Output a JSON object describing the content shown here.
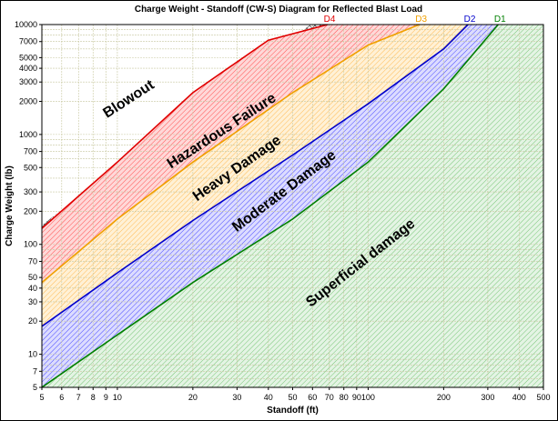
{
  "chart_data": {
    "type": "area",
    "title": "Charge Weight - Standoff (CW-S) Diagram for Reflected Blast Load",
    "xlabel": "Standoff (ft)",
    "ylabel": "Charge Weight (lb)",
    "x_scale": "log",
    "y_scale": "log",
    "xlim": [
      5,
      500
    ],
    "ylim": [
      5,
      10000
    ],
    "grid": true,
    "x_ticks": [
      {
        "v": 5,
        "label": "5"
      },
      {
        "v": 6,
        "label": "6"
      },
      {
        "v": 7,
        "label": "7"
      },
      {
        "v": 8,
        "label": "8"
      },
      {
        "v": 9,
        "label": "9"
      },
      {
        "v": 10,
        "label": "10"
      },
      {
        "v": 20,
        "label": "20"
      },
      {
        "v": 30,
        "label": "30"
      },
      {
        "v": 40,
        "label": "40"
      },
      {
        "v": 50,
        "label": "50"
      },
      {
        "v": 60,
        "label": "60"
      },
      {
        "v": 70,
        "label": "70"
      },
      {
        "v": 80,
        "label": "80"
      },
      {
        "v": 90,
        "label": "90"
      },
      {
        "v": 100,
        "label": "100"
      },
      {
        "v": 200,
        "label": "200"
      },
      {
        "v": 300,
        "label": "300"
      },
      {
        "v": 400,
        "label": "400"
      },
      {
        "v": 500,
        "label": "500"
      }
    ],
    "y_ticks": [
      {
        "v": 5,
        "label": "5"
      },
      {
        "v": 7,
        "label": "7"
      },
      {
        "v": 10,
        "label": "10"
      },
      {
        "v": 20,
        "label": "20"
      },
      {
        "v": 30,
        "label": "30"
      },
      {
        "v": 40,
        "label": "40"
      },
      {
        "v": 50,
        "label": "50"
      },
      {
        "v": 70,
        "label": "70"
      },
      {
        "v": 100,
        "label": "100"
      },
      {
        "v": 200,
        "label": "200"
      },
      {
        "v": 300,
        "label": "300"
      },
      {
        "v": 500,
        "label": "500"
      },
      {
        "v": 700,
        "label": "700"
      },
      {
        "v": 1000,
        "label": "1000"
      },
      {
        "v": 2000,
        "label": "2000"
      },
      {
        "v": 3000,
        "label": "3000"
      },
      {
        "v": 4000,
        "label": "4000"
      },
      {
        "v": 5000,
        "label": "5000"
      },
      {
        "v": 7000,
        "label": "7000"
      },
      {
        "v": 10000,
        "label": "10000"
      }
    ],
    "series": [
      {
        "name": "D4",
        "color": "#e00000",
        "x": [
          5,
          10,
          20,
          40,
          69
        ],
        "y": [
          140,
          560,
          2400,
          7200,
          10000
        ]
      },
      {
        "name": "D3",
        "color": "#f0a000",
        "x": [
          5,
          10,
          20,
          50,
          100,
          160
        ],
        "y": [
          45,
          170,
          560,
          2400,
          6500,
          10000
        ]
      },
      {
        "name": "D2",
        "color": "#0000cc",
        "x": [
          5,
          10,
          20,
          50,
          100,
          200,
          250
        ],
        "y": [
          18,
          55,
          165,
          650,
          1900,
          6000,
          10000
        ]
      },
      {
        "name": "D1",
        "color": "#008000",
        "x": [
          5,
          10,
          20,
          50,
          100,
          200,
          330
        ],
        "y": [
          5,
          15,
          45,
          170,
          560,
          2600,
          10000
        ]
      }
    ],
    "regions": [
      {
        "label": "Blowout",
        "color": "#333333"
      },
      {
        "label": "Hazardous Failure",
        "color": "#ff4444"
      },
      {
        "label": "Heavy Damage",
        "color": "#ffb030"
      },
      {
        "label": "Moderate Damage",
        "color": "#3333ff"
      },
      {
        "label": "Superficial damage",
        "color": "#33aa33"
      }
    ]
  }
}
